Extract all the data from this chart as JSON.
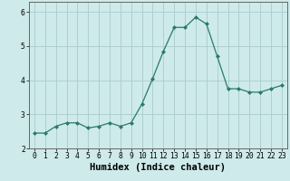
{
  "x": [
    0,
    1,
    2,
    3,
    4,
    5,
    6,
    7,
    8,
    9,
    10,
    11,
    12,
    13,
    14,
    15,
    16,
    17,
    18,
    19,
    20,
    21,
    22,
    23
  ],
  "y": [
    2.45,
    2.45,
    2.65,
    2.75,
    2.75,
    2.6,
    2.65,
    2.75,
    2.65,
    2.75,
    3.3,
    4.05,
    4.85,
    5.55,
    5.55,
    5.85,
    5.65,
    4.7,
    3.75,
    3.75,
    3.65,
    3.65,
    3.75,
    3.85
  ],
  "line_color": "#2a7a6a",
  "marker": "D",
  "marker_size": 2.0,
  "linewidth": 0.9,
  "bg_color": "#ceeaea",
  "grid_color": "#aacccc",
  "xlabel": "Humidex (Indice chaleur)",
  "xlabel_fontsize": 7.5,
  "ylim": [
    2.0,
    6.3
  ],
  "xlim": [
    -0.5,
    23.5
  ],
  "yticks": [
    2,
    3,
    4,
    5,
    6
  ],
  "xticks": [
    0,
    1,
    2,
    3,
    4,
    5,
    6,
    7,
    8,
    9,
    10,
    11,
    12,
    13,
    14,
    15,
    16,
    17,
    18,
    19,
    20,
    21,
    22,
    23
  ],
  "xtick_labels": [
    "0",
    "1",
    "2",
    "3",
    "4",
    "5",
    "6",
    "7",
    "8",
    "9",
    "10",
    "11",
    "12",
    "13",
    "14",
    "15",
    "16",
    "17",
    "18",
    "19",
    "20",
    "21",
    "22",
    "23"
  ],
  "tick_fontsize": 5.8,
  "spine_color": "#666666",
  "grid_linewidth": 0.6
}
